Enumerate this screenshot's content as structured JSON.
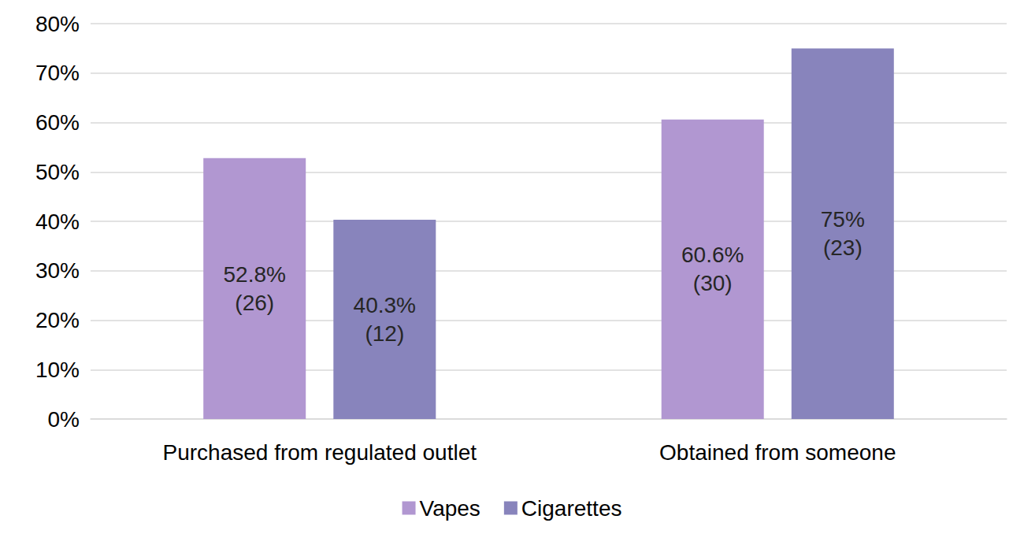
{
  "chart_data": {
    "type": "bar",
    "categories": [
      "Purchased from regulated outlet",
      "Obtained from someone"
    ],
    "series": [
      {
        "name": "Vapes",
        "color": "#b197d1",
        "values": [
          52.8,
          60.6
        ],
        "value_labels": [
          "52.8%\n(26)",
          "60.6%\n(30)"
        ]
      },
      {
        "name": "Cigarettes",
        "color": "#8884bc",
        "values": [
          40.3,
          75
        ],
        "value_labels": [
          "40.3%\n(12)",
          "75%\n(23)"
        ]
      }
    ],
    "ylim": [
      0,
      80
    ],
    "yticks": [
      {
        "value": 0,
        "label": "0%"
      },
      {
        "value": 10,
        "label": "10%"
      },
      {
        "value": 20,
        "label": "20%"
      },
      {
        "value": 30,
        "label": "30%"
      },
      {
        "value": 40,
        "label": "40%"
      },
      {
        "value": 50,
        "label": "50%"
      },
      {
        "value": 60,
        "label": "60%"
      },
      {
        "value": 70,
        "label": "70%"
      },
      {
        "value": 80,
        "label": "80%"
      }
    ],
    "grid": true,
    "legend": "bottom",
    "data_labels": true
  }
}
